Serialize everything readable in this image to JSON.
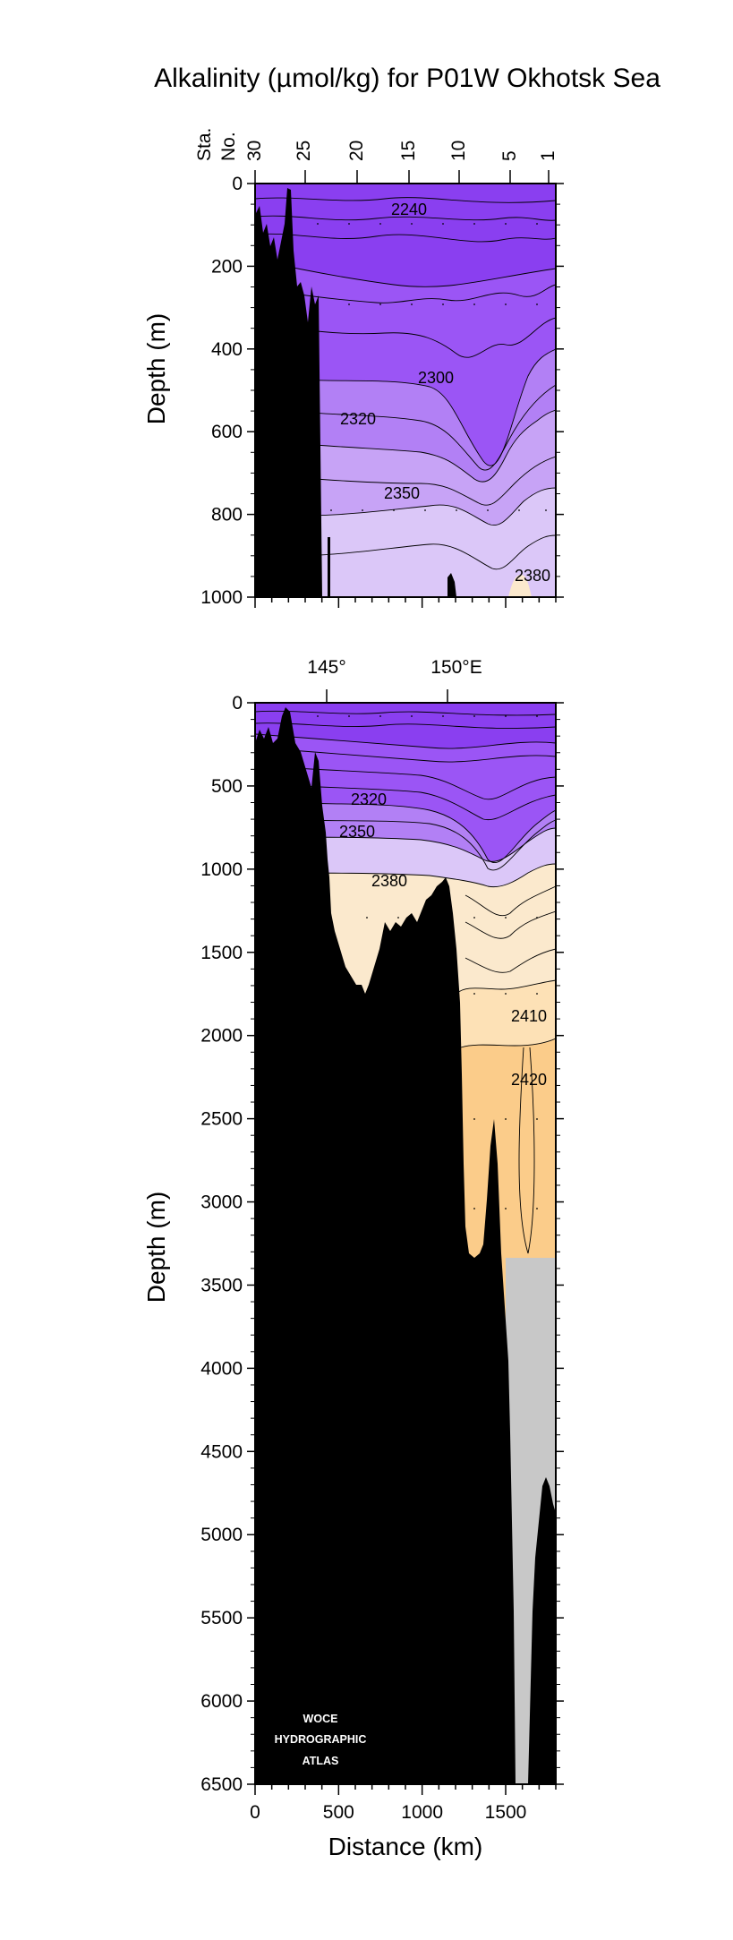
{
  "figure": {
    "title": "Alkalinity (µmol/kg) for P01W Okhotsk Sea",
    "xlabel": "Distance (km)",
    "logo_lines": [
      "WOCE",
      "HYDROGRAPHIC",
      "ATLAS"
    ]
  },
  "chart_data": [
    {
      "id": "upper-panel",
      "type": "contour-section",
      "top_axis_label": [
        "Sta.",
        "No."
      ],
      "station_ticks": [
        "30",
        "25",
        "20",
        "15",
        "10",
        "5",
        "1"
      ],
      "ylabel": "Depth (m)",
      "ylim": [
        0,
        1000
      ],
      "yticks": [
        0,
        200,
        400,
        600,
        800,
        1000
      ],
      "contour_labels": [
        "2240",
        "2300",
        "2320",
        "2350",
        "2380"
      ],
      "color_bands": [
        {
          "from": 2200,
          "to": 2260,
          "color": "#8a3ff0"
        },
        {
          "from": 2260,
          "to": 2300,
          "color": "#9b55f5"
        },
        {
          "from": 2300,
          "to": 2320,
          "color": "#b280f5"
        },
        {
          "from": 2320,
          "to": 2340,
          "color": "#c7a3f6"
        },
        {
          "from": 2340,
          "to": 2380,
          "color": "#dbc7f8"
        },
        {
          "from": 2380,
          "to": 2400,
          "color": "#fbe9cd"
        }
      ]
    },
    {
      "id": "lower-panel",
      "type": "contour-section",
      "lon_ticks": [
        "145°",
        "150°E"
      ],
      "ylabel": "Depth (m)",
      "ylim": [
        0,
        6500
      ],
      "yticks": [
        0,
        500,
        1000,
        1500,
        2000,
        2500,
        3000,
        3500,
        4000,
        4500,
        5000,
        5500,
        6000,
        6500
      ],
      "xlim": [
        0,
        1800
      ],
      "xticks": [
        0,
        500,
        1000,
        1500
      ],
      "contour_labels": [
        "2320",
        "2350",
        "2380",
        "2410",
        "2420"
      ],
      "color_bands": [
        {
          "from": 2200,
          "to": 2260,
          "color": "#8a3ff0"
        },
        {
          "from": 2260,
          "to": 2320,
          "color": "#9b55f5"
        },
        {
          "from": 2320,
          "to": 2340,
          "color": "#b280f5"
        },
        {
          "from": 2340,
          "to": 2380,
          "color": "#dbc7f8"
        },
        {
          "from": 2380,
          "to": 2410,
          "color": "#fbe9cd"
        },
        {
          "from": 2410,
          "to": 2420,
          "color": "#fde1b6"
        },
        {
          "from": 2420,
          "to": 2440,
          "color": "#fbcc8a"
        }
      ],
      "no_data_color": "#c8c8c8",
      "land_color": "#000000"
    }
  ]
}
